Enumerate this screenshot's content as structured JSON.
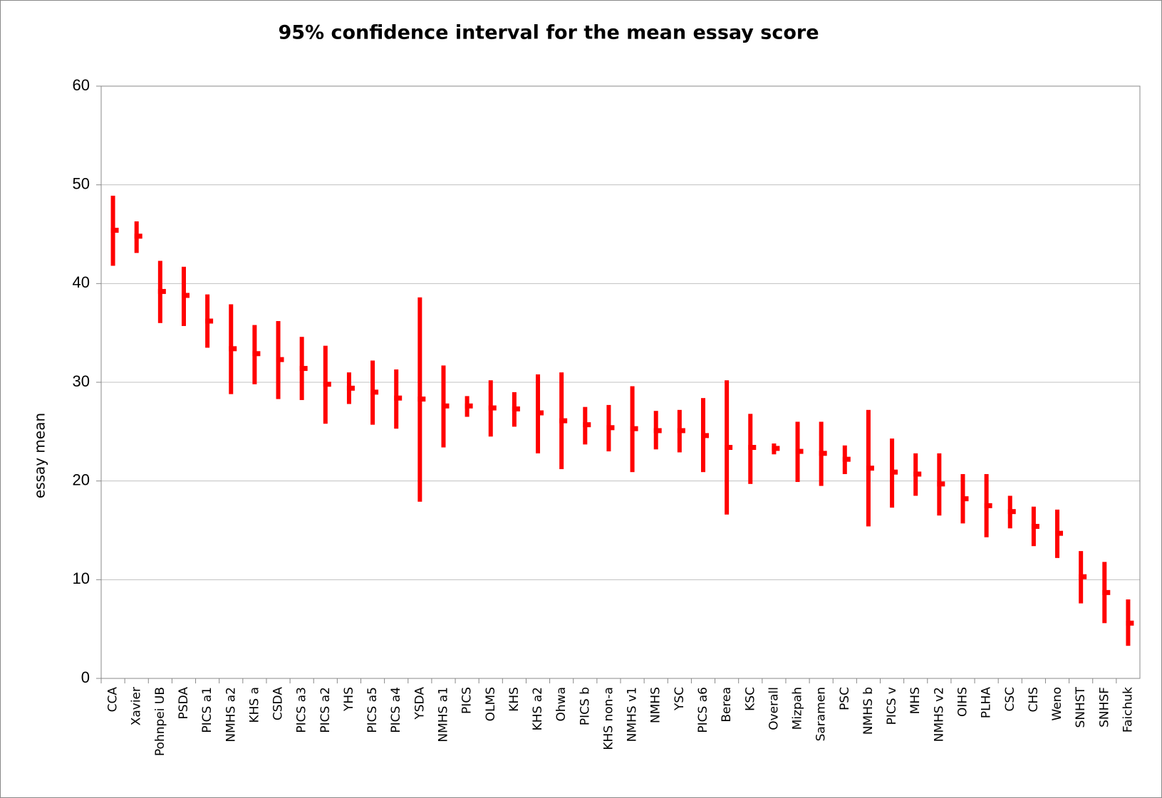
{
  "chart_data": {
    "type": "high-low-mean",
    "title": "95% confidence interval for the mean essay score",
    "y_label": "essay mean",
    "categories": [
      "CCA",
      "Xavier",
      "Pohnpei UB",
      "PSDA",
      "PICS a1",
      "NMHS a2",
      "KHS a",
      "CSDA",
      "PICS a3",
      "PICS a2",
      "YHS",
      "PICS a5",
      "PICS a4",
      "YSDA",
      "NMHS a1",
      "PICS",
      "OLMS",
      "KHS",
      "KHS a2",
      "Ohwa",
      "PICS b",
      "KHS non-a",
      "NMHS v1",
      "NMHS",
      "YSC",
      "PICS a6",
      "Berea",
      "KSC",
      "Overall",
      "Mizpah",
      "Saramen",
      "PSC",
      "NMHS b",
      "PICS v",
      "MHS",
      "NMHS v2",
      "OIHS",
      "PLHA",
      "CSC",
      "CHS",
      "Weno",
      "SNHST",
      "SNHSF",
      "Faichuk"
    ],
    "high": [
      48.9,
      46.3,
      42.3,
      41.7,
      38.9,
      37.9,
      35.8,
      36.2,
      34.6,
      33.7,
      31.0,
      32.2,
      31.3,
      38.6,
      31.7,
      28.6,
      30.2,
      29.0,
      30.8,
      31.0,
      27.5,
      27.7,
      29.6,
      27.1,
      27.2,
      28.4,
      30.2,
      26.8,
      23.8,
      26.0,
      26.0,
      23.6,
      27.2,
      24.3,
      22.8,
      22.8,
      20.7,
      20.7,
      18.5,
      17.4,
      17.1,
      12.9,
      11.8,
      8.0
    ],
    "low": [
      41.8,
      43.1,
      36.0,
      35.7,
      33.5,
      28.8,
      29.8,
      28.3,
      28.2,
      25.8,
      27.8,
      25.7,
      25.3,
      17.9,
      23.4,
      26.5,
      24.5,
      25.5,
      22.8,
      21.2,
      23.7,
      23.0,
      20.9,
      23.2,
      22.9,
      20.9,
      16.6,
      19.7,
      22.7,
      19.9,
      19.5,
      20.7,
      15.4,
      17.3,
      18.5,
      16.5,
      15.7,
      14.3,
      15.2,
      13.4,
      12.2,
      7.6,
      5.6,
      3.3
    ],
    "mean": [
      45.4,
      44.8,
      39.2,
      38.8,
      36.2,
      33.4,
      32.9,
      32.3,
      31.4,
      29.8,
      29.4,
      29.0,
      28.4,
      28.3,
      27.6,
      27.6,
      27.4,
      27.3,
      26.9,
      26.1,
      25.7,
      25.4,
      25.3,
      25.1,
      25.1,
      24.6,
      23.4,
      23.4,
      23.3,
      23.0,
      22.8,
      22.2,
      21.3,
      20.9,
      20.7,
      19.7,
      18.2,
      17.5,
      16.9,
      15.4,
      14.7,
      10.3,
      8.7,
      5.6
    ],
    "color": "#ff0000",
    "ylim": [
      0,
      60
    ],
    "yticks": [
      0,
      10,
      20,
      30,
      40,
      50,
      60
    ],
    "grid": true
  }
}
